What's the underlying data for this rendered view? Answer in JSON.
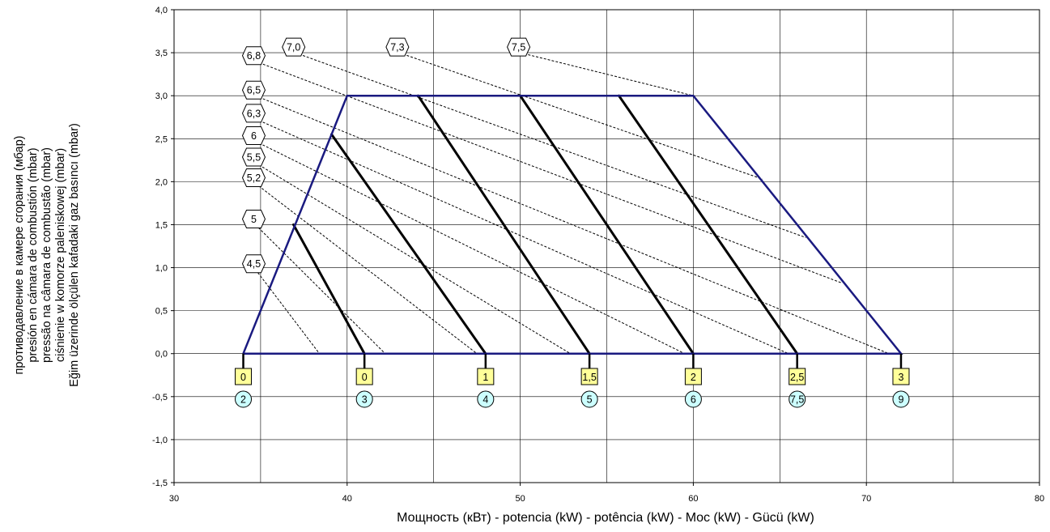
{
  "chart_data": {
    "type": "line",
    "title": "",
    "xlabel": "Мощность (кВт) - potencia (kW) - potência (kW) - Moc (kW) - Gücü (kW)",
    "ylabel_lines": [
      "противодавление в камере сгорания (мбар)",
      "presión en cámara de combustión (mbar)",
      "pressão na câmara de combustão (mbar)",
      "ciśnienie w komorze paleniskowej (mbar)",
      "Eğim üzerinde ölçülen kafadaki gaz basıncı (mbar)"
    ],
    "xlim": [
      30,
      80
    ],
    "ylim": [
      -1.5,
      4.0
    ],
    "x_ticks": [
      30,
      40,
      50,
      60,
      70,
      80
    ],
    "x_tick_labels": [
      "30",
      "40",
      "50",
      "60",
      "70",
      "80"
    ],
    "y_ticks": [
      -1.5,
      -1.0,
      -0.5,
      0.0,
      0.5,
      1.0,
      1.5,
      2.0,
      2.5,
      3.0,
      3.5,
      4.0
    ],
    "y_tick_labels": [
      "-1,5",
      "-1,0",
      "-0,5",
      "0,0",
      "0,5",
      "1,0",
      "1,5",
      "2,0",
      "2,5",
      "3,0",
      "3,5",
      "4,0"
    ],
    "grid": true,
    "colors": {
      "envelope": "#1a1a80",
      "heavy": "#000000",
      "dashed": "#000000",
      "square_fill": "#ffff99",
      "circle_fill": "#ccffff"
    },
    "envelope": [
      [
        34,
        0.0
      ],
      [
        40,
        3.0
      ],
      [
        60,
        3.0
      ],
      [
        72,
        0.0
      ],
      [
        34,
        0.0
      ]
    ],
    "position_lines": [
      {
        "x_base": 41,
        "top": [
          36.9,
          1.5
        ]
      },
      {
        "x_base": 48,
        "top": [
          39.1,
          2.55
        ]
      },
      {
        "x_base": 54,
        "top": [
          44.1,
          3.0
        ]
      },
      {
        "x_base": 60,
        "top": [
          50.0,
          3.0
        ]
      },
      {
        "x_base": 66,
        "top": [
          55.7,
          3.0
        ]
      }
    ],
    "gas_pressure_lines": [
      {
        "label": "4,5",
        "start": [
          34.7,
          0.98
        ],
        "end": [
          38.4,
          0.0
        ]
      },
      {
        "label": "5",
        "start": [
          34.7,
          1.5
        ],
        "end": [
          42.2,
          0.0
        ]
      },
      {
        "label": "5,2",
        "start": [
          34.7,
          1.98
        ],
        "end": [
          47.5,
          0.0
        ]
      },
      {
        "label": "5,5",
        "start": [
          34.7,
          2.22
        ],
        "end": [
          52.9,
          0.0
        ]
      },
      {
        "label": "6",
        "start": [
          34.7,
          2.47
        ],
        "end": [
          59.5,
          0.0
        ]
      },
      {
        "label": "6,3",
        "start": [
          34.7,
          2.73
        ],
        "end": [
          65.5,
          0.0
        ]
      },
      {
        "label": "6,5",
        "start": [
          34.7,
          3.0
        ],
        "end": [
          71.3,
          0.0
        ]
      },
      {
        "label": "6,8",
        "start": [
          34.7,
          3.4
        ],
        "end": [
          68.6,
          0.82
        ]
      },
      {
        "label": "7,0",
        "start": [
          37.0,
          3.5
        ],
        "end": [
          66.5,
          1.35
        ]
      },
      {
        "label": "7,3",
        "start": [
          43.0,
          3.5
        ],
        "end": [
          64.0,
          2.03
        ]
      },
      {
        "label": "7,5",
        "start": [
          50.0,
          3.5
        ],
        "end": [
          60.0,
          3.0
        ]
      }
    ],
    "base_ticks": [
      34,
      41,
      48,
      54,
      60,
      66,
      72
    ],
    "square_labels": [
      "0",
      "0",
      "1",
      "1,5",
      "2",
      "2,5",
      "3"
    ],
    "circle_labels": [
      "2",
      "3",
      "4",
      "5",
      "6",
      "7,5",
      "9"
    ]
  }
}
